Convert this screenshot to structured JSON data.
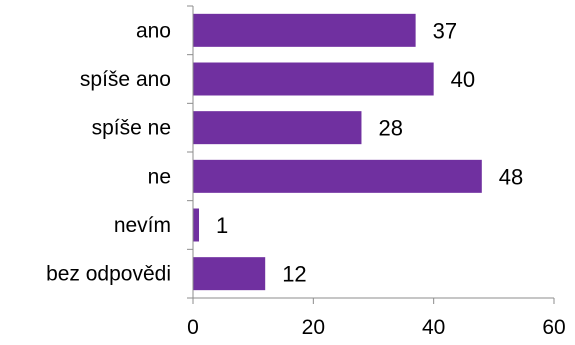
{
  "chart_data": {
    "type": "bar",
    "orientation": "horizontal",
    "categories": [
      "ano",
      "spíše ano",
      "spíše ne",
      "ne",
      "nevím",
      "bez odpovědi"
    ],
    "values": [
      37,
      40,
      28,
      48,
      1,
      12
    ],
    "data_labels": [
      "37",
      "40",
      "28",
      "48",
      "1",
      "12"
    ],
    "xlim": [
      0,
      60
    ],
    "x_ticks": [
      0,
      20,
      40,
      60
    ],
    "x_tick_labels": [
      "0",
      "20",
      "40",
      "60"
    ],
    "grid": false,
    "legend": "none",
    "colors": {
      "bar": "#7030a0",
      "axis": "#8c8c8c",
      "text": "#000000"
    }
  }
}
